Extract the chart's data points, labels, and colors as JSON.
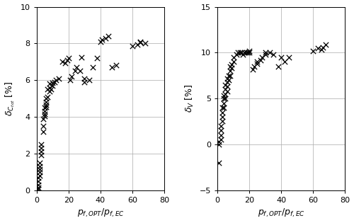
{
  "left_x": [
    1,
    1,
    1,
    1,
    1,
    2,
    2,
    2,
    2,
    2,
    3,
    3,
    3,
    3,
    4,
    4,
    4,
    5,
    5,
    5,
    5,
    6,
    6,
    6,
    6,
    7,
    7,
    8,
    8,
    8,
    9,
    10,
    10,
    11,
    12,
    14,
    16,
    18,
    19,
    20,
    21,
    22,
    24,
    25,
    27,
    28,
    30,
    30,
    33,
    35,
    38,
    40,
    41,
    43,
    45,
    47,
    50,
    60,
    63,
    65,
    65,
    68
  ],
  "left_y": [
    0.05,
    0.15,
    0.3,
    0.5,
    0.7,
    0.8,
    1.0,
    1.15,
    1.3,
    1.5,
    1.9,
    2.1,
    2.3,
    2.5,
    3.2,
    3.5,
    3.9,
    4.05,
    4.15,
    4.3,
    4.5,
    4.55,
    4.65,
    4.8,
    5.0,
    5.1,
    5.5,
    5.4,
    5.6,
    5.8,
    5.5,
    5.7,
    5.85,
    5.9,
    6.0,
    6.1,
    7.0,
    6.95,
    7.1,
    7.2,
    6.0,
    6.2,
    6.5,
    6.7,
    6.5,
    7.25,
    5.9,
    6.1,
    6.0,
    6.7,
    7.2,
    8.1,
    8.2,
    8.3,
    8.4,
    6.7,
    6.8,
    7.85,
    7.95,
    8.05,
    8.1,
    8.0
  ],
  "right_x": [
    1,
    1,
    1,
    2,
    2,
    2,
    2,
    3,
    3,
    3,
    3,
    4,
    4,
    4,
    4,
    5,
    5,
    5,
    5,
    6,
    6,
    6,
    6,
    7,
    7,
    8,
    8,
    8,
    9,
    9,
    10,
    10,
    12,
    13,
    14,
    15,
    16,
    17,
    18,
    19,
    20,
    20,
    22,
    23,
    25,
    25,
    27,
    28,
    30,
    30,
    33,
    35,
    38,
    40,
    42,
    45,
    60,
    63,
    65,
    66,
    68
  ],
  "right_y": [
    -2.0,
    0.0,
    0.3,
    0.5,
    1.0,
    1.5,
    2.0,
    2.5,
    3.0,
    3.5,
    4.0,
    4.0,
    4.5,
    5.0,
    5.3,
    5.0,
    5.5,
    6.0,
    6.5,
    5.8,
    6.3,
    6.8,
    7.2,
    7.0,
    7.5,
    7.5,
    8.0,
    8.5,
    8.3,
    8.7,
    9.0,
    9.5,
    9.8,
    10.0,
    10.0,
    10.0,
    9.8,
    10.0,
    10.0,
    10.0,
    10.0,
    10.2,
    8.2,
    8.5,
    8.8,
    9.0,
    9.2,
    9.5,
    9.8,
    10.0,
    10.0,
    9.8,
    8.5,
    9.5,
    9.0,
    9.5,
    10.2,
    10.5,
    10.3,
    10.6,
    10.9
  ],
  "left_ylabel": "$\\delta_{C_{tot}}$ [%]",
  "right_ylabel": "$\\delta_V$ [%]",
  "xlabel": "$p_{f,OPT}/p_{f,EC}$",
  "left_xlim": [
    0,
    80
  ],
  "left_ylim": [
    0,
    10
  ],
  "right_xlim": [
    0,
    80
  ],
  "right_ylim": [
    -5,
    15
  ],
  "left_xticks": [
    0,
    20,
    40,
    60,
    80
  ],
  "left_yticks": [
    0,
    2,
    4,
    6,
    8,
    10
  ],
  "right_xticks": [
    0,
    20,
    40,
    60,
    80
  ],
  "right_yticks": [
    -5,
    0,
    5,
    10,
    15
  ],
  "marker_color": "black",
  "marker_size": 28,
  "marker_lw": 0.9,
  "bg_color": "white",
  "grid_color": "#aaaaaa",
  "grid_lw": 0.5,
  "tick_fontsize": 8,
  "label_fontsize": 9
}
